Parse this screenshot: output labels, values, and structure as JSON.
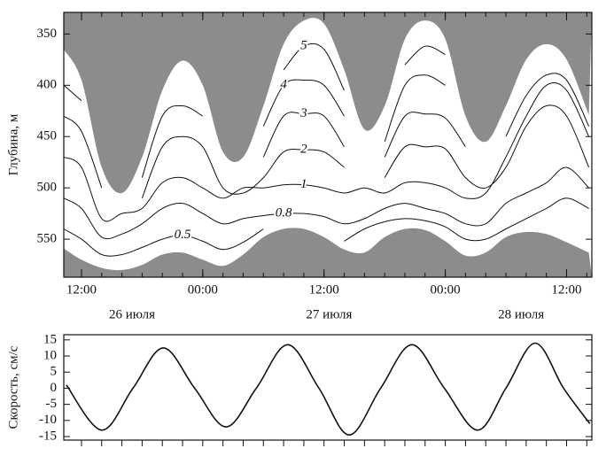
{
  "chart_data": [
    {
      "type": "contour",
      "ylabel": "Глубина, м",
      "x": [
        10.25,
        12,
        14,
        16,
        18,
        20,
        22,
        24,
        26,
        28,
        30,
        32,
        34,
        36,
        38,
        40,
        42,
        44,
        46,
        48,
        50,
        52,
        54,
        56,
        58,
        60,
        62.2
      ],
      "upper_boundary": [
        365,
        395,
        480,
        505,
        470,
        405,
        376,
        400,
        465,
        470,
        420,
        360,
        337,
        340,
        385,
        443,
        420,
        355,
        337,
        355,
        430,
        455,
        420,
        375,
        360,
        375,
        429
      ],
      "lower_boundary": [
        559,
        570,
        578,
        580,
        575,
        565,
        563,
        570,
        576,
        565,
        548,
        540,
        540,
        548,
        560,
        563,
        548,
        540,
        541,
        552,
        566,
        563,
        548,
        543,
        545,
        553,
        563
      ],
      "mask_color": "#8c8c8c",
      "series": [
        {
          "name": "5",
          "color": "#111",
          "values": [
            null,
            null,
            null,
            null,
            null,
            null,
            null,
            null,
            null,
            null,
            null,
            385,
            362,
            365,
            405,
            null,
            null,
            380,
            362,
            370,
            null,
            null,
            null,
            null,
            null,
            null,
            null
          ]
        },
        {
          "name": "4",
          "color": "#111",
          "values": [
            null,
            null,
            null,
            null,
            null,
            null,
            null,
            null,
            null,
            null,
            440,
            400,
            395,
            400,
            430,
            null,
            455,
            400,
            390,
            400,
            null,
            null,
            null,
            null,
            null,
            null,
            null
          ]
        },
        {
          "name": "3",
          "color": "#111",
          "values": [
            400,
            415,
            null,
            null,
            490,
            430,
            420,
            430,
            null,
            null,
            470,
            430,
            428,
            430,
            460,
            null,
            470,
            430,
            428,
            432,
            460,
            null,
            450,
            410,
            390,
            395,
            440
          ]
        },
        {
          "name": "2",
          "color": "#111",
          "values": [
            430,
            445,
            500,
            null,
            510,
            460,
            450,
            460,
            500,
            505,
            490,
            465,
            463,
            465,
            480,
            null,
            490,
            460,
            460,
            462,
            490,
            500,
            480,
            440,
            420,
            430,
            480
          ]
        },
        {
          "name": "1",
          "color": "#111",
          "values": [
            470,
            480,
            530,
            525,
            520,
            495,
            490,
            500,
            510,
            500,
            500,
            497,
            497,
            500,
            505,
            500,
            505,
            495,
            495,
            500,
            510,
            505,
            470,
            430,
            400,
            405,
            450
          ]
        },
        {
          "name": "0.8",
          "color": "#111",
          "values": [
            510,
            520,
            548,
            545,
            535,
            520,
            515,
            525,
            535,
            530,
            527,
            525,
            525,
            528,
            535,
            530,
            520,
            515,
            520,
            525,
            535,
            535,
            515,
            505,
            495,
            480,
            500
          ]
        },
        {
          "name": "0.5",
          "color": "#111",
          "values": [
            540,
            550,
            565,
            565,
            558,
            550,
            546,
            552,
            560,
            553,
            540,
            null,
            null,
            null,
            552,
            540,
            533,
            530,
            532,
            538,
            550,
            550,
            540,
            530,
            520,
            510,
            520
          ]
        }
      ],
      "xlim": [
        10.25,
        62.5
      ],
      "ylim": [
        329,
        587
      ],
      "y_inverted": true,
      "xticks": [
        {
          "value": 12,
          "label": "12:00"
        },
        {
          "value": 24,
          "label": "00:00"
        },
        {
          "value": 36,
          "label": "12:00"
        },
        {
          "value": 48,
          "label": "00:00"
        },
        {
          "value": 60,
          "label": "12:00"
        }
      ],
      "xminorticks": [
        12,
        14,
        16,
        18,
        20,
        22,
        24,
        26,
        28,
        30,
        32,
        34,
        36,
        38,
        40,
        42,
        44,
        46,
        48,
        50,
        52,
        54,
        56,
        58,
        60,
        62
      ],
      "yticks": [
        350,
        400,
        450,
        500,
        550
      ],
      "date_labels": [
        "26 июля",
        "27 июля",
        "28 июля"
      ]
    },
    {
      "type": "line",
      "ylabel": "Скорость, см/с",
      "x": [
        10.5,
        14.0,
        17.1,
        20.1,
        23.2,
        26.3,
        29.3,
        32.4,
        35.5,
        38.5,
        41.6,
        44.7,
        47.9,
        51.2,
        54.0,
        56.9,
        59.7,
        62.3
      ],
      "values": [
        1,
        -13,
        0,
        12.5,
        0,
        -12,
        0,
        13.5,
        0,
        -14.5,
        0,
        13.5,
        0,
        -13,
        0,
        14,
        0,
        -11
      ],
      "color": "#111",
      "xlim": [
        10.25,
        62.5
      ],
      "ylim": [
        -16.1,
        16.6
      ],
      "yticks": [
        15,
        10,
        5,
        0,
        -5,
        -10,
        -15
      ],
      "xminorticks": [
        12,
        14,
        16,
        18,
        20,
        22,
        24,
        26,
        28,
        30,
        32,
        34,
        36,
        38,
        40,
        42,
        44,
        46,
        48,
        50,
        52,
        54,
        56,
        58,
        60,
        62
      ]
    }
  ]
}
